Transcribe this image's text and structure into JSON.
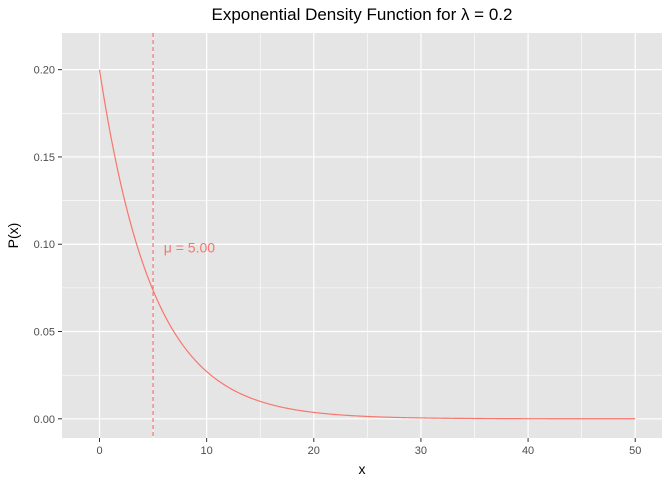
{
  "chart_data": {
    "type": "line",
    "title": "Exponential Density Function for λ = 0.2",
    "xlabel": "x",
    "ylabel": "P(x)",
    "xlim": [
      -3.5,
      52.5
    ],
    "ylim": [
      -0.011,
      0.221
    ],
    "x_ticks": [
      0,
      10,
      20,
      30,
      40,
      50
    ],
    "y_ticks": [
      0.0,
      0.05,
      0.1,
      0.15,
      0.2
    ],
    "x_tick_labels": [
      "0",
      "10",
      "20",
      "30",
      "40",
      "50"
    ],
    "y_tick_labels": [
      "0.00",
      "0.05",
      "0.10",
      "0.15",
      "0.20"
    ],
    "grid": true,
    "panel_background": "#e5e5e5",
    "grid_color": "#ffffff",
    "series": [
      {
        "color": "#f8766d",
        "rate": 0.2,
        "x": [
          0,
          1,
          2,
          3,
          4,
          5,
          6,
          7,
          8,
          9,
          10,
          12,
          14,
          16,
          18,
          20,
          22.5,
          25,
          27.5,
          30,
          35,
          40,
          45,
          50
        ],
        "y": [
          0.2,
          0.1637,
          0.1341,
          0.1098,
          0.0899,
          0.0736,
          0.0602,
          0.0493,
          0.0404,
          0.0331,
          0.0271,
          0.0181,
          0.0122,
          0.0082,
          0.0055,
          0.0037,
          0.0022,
          0.0013,
          0.0008,
          0.0005,
          0.0002,
          0.0001,
          0.0,
          0.0
        ]
      }
    ],
    "vline": {
      "x": 5.0,
      "color": "#f8766d",
      "style": "dashed"
    },
    "annotation": {
      "text": "μ = 5.00",
      "x": 6,
      "y": 0.098,
      "color": "#f8766d"
    }
  }
}
